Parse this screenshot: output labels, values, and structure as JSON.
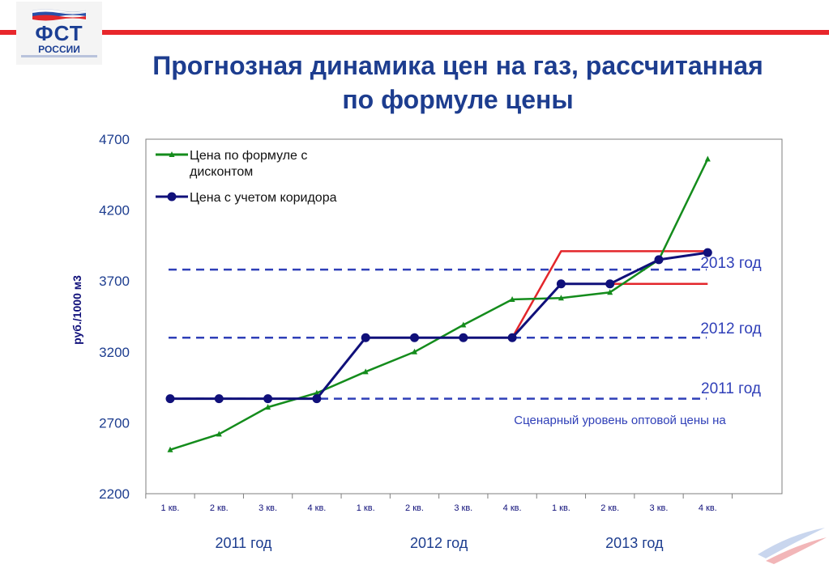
{
  "logo": {
    "abbr": "ФСТ",
    "country": "РОССИИ"
  },
  "title": {
    "line1": "Прогнозная динамика цен на газ, рассчитанная",
    "line2": "по формуле цены"
  },
  "colors": {
    "green": "#148c1c",
    "navy": "#10107a",
    "red": "#e3262b",
    "dashed": "#2f3fb8",
    "title": "#1d3d8f",
    "accent_red": "#e8262b"
  },
  "chart_data": {
    "type": "line",
    "ylabel": "руб./1000 м3",
    "ylim": [
      2200,
      4700
    ],
    "yticks": [
      2200,
      2700,
      3200,
      3700,
      4200,
      4700
    ],
    "categories": [
      "1 кв.",
      "2 кв.",
      "3 кв.",
      "4 кв.",
      "1 кв.",
      "2 кв.",
      "3 кв.",
      "4 кв.",
      "1 кв.",
      "2 кв.",
      "3 кв.",
      "4 кв."
    ],
    "year_groups": [
      "2011 год",
      "2012 год",
      "2013 год"
    ],
    "legend_placement": "top-left",
    "grid": false,
    "series": [
      {
        "name": "Цена по формуле с дисконтом",
        "name_lines": [
          "Цена по формуле с",
          "дисконтом"
        ],
        "marker": "triangle",
        "values": [
          2510,
          2620,
          2810,
          2910,
          3060,
          3200,
          3390,
          3570,
          3580,
          3620,
          3850,
          4560
        ]
      },
      {
        "name": "Цена с учетом коридора",
        "name_lines": [
          "Цена с учетом коридора"
        ],
        "marker": "circle",
        "values": [
          2870,
          2870,
          2870,
          2870,
          3300,
          3300,
          3300,
          3300,
          3680,
          3680,
          3850,
          3900
        ]
      },
      {
        "name": "",
        "marker": "none",
        "values": [
          null,
          null,
          null,
          null,
          null,
          null,
          null,
          3300,
          3910,
          3910,
          3910,
          3910
        ]
      },
      {
        "name": "",
        "marker": "none",
        "values": [
          null,
          null,
          null,
          null,
          null,
          null,
          null,
          null,
          3680,
          3680,
          3680,
          3680
        ]
      }
    ],
    "reference_lines": [
      {
        "label": "2013 год",
        "value": 3780
      },
      {
        "label": "2012 год",
        "value": 3300
      },
      {
        "label": "2011 год",
        "value": 2870
      }
    ],
    "annotation": "Сценарный уровень оптовой цены на"
  }
}
